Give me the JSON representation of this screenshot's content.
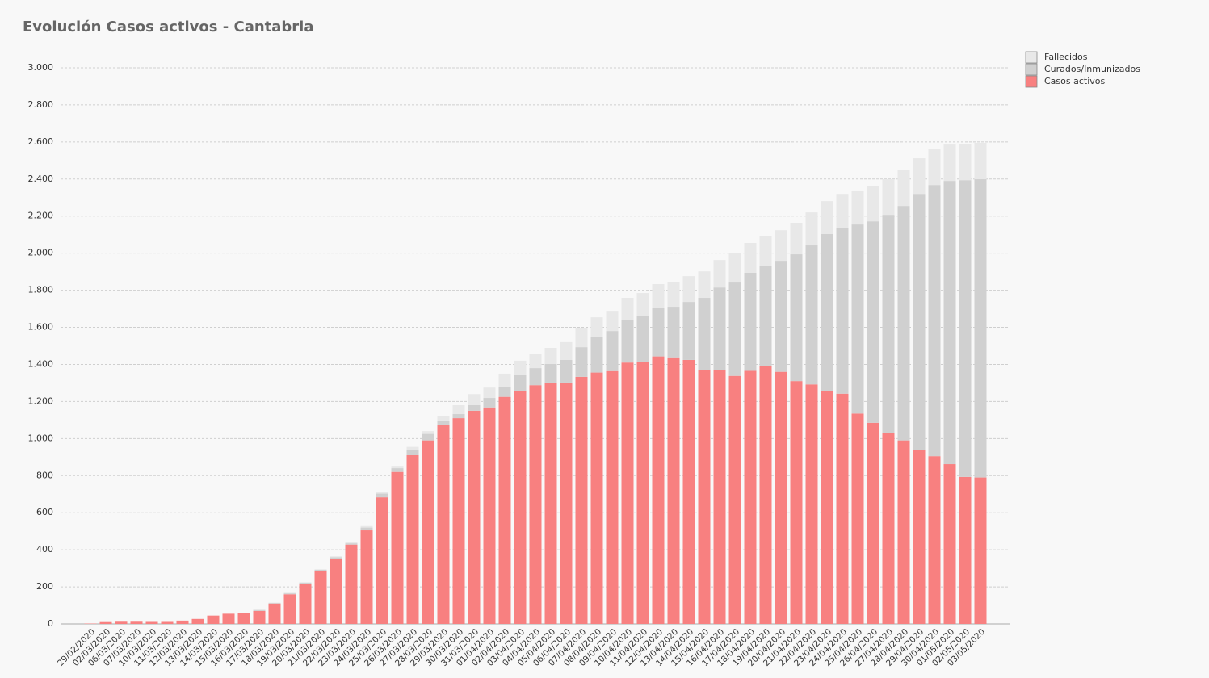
{
  "chart_data": {
    "type": "stacked-bar",
    "title": "Evolución Casos activos - Cantabria",
    "categories": [
      "29/02/2020",
      "02/03/2020",
      "06/03/2020",
      "07/03/2020",
      "10/03/2020",
      "11/03/2020",
      "12/03/2020",
      "13/03/2020",
      "14/03/2020",
      "15/03/2020",
      "16/03/2020",
      "17/03/2020",
      "18/03/2020",
      "19/03/2020",
      "20/03/2020",
      "21/03/2020",
      "22/03/2020",
      "23/03/2020",
      "24/03/2020",
      "25/03/2020",
      "26/03/2020",
      "27/03/2020",
      "28/03/2020",
      "29/03/2020",
      "30/03/2020",
      "31/03/2020",
      "01/04/2020",
      "02/04/2020",
      "03/04/2020",
      "04/04/2020",
      "05/04/2020",
      "06/04/2020",
      "07/04/2020",
      "08/04/2020",
      "09/04/2020",
      "10/04/2020",
      "11/04/2020",
      "12/04/2020",
      "13/04/2020",
      "14/04/2020",
      "15/04/2020",
      "16/04/2020",
      "17/04/2020",
      "18/04/2020",
      "19/04/2020",
      "20/04/2020",
      "21/04/2020",
      "22/04/2020",
      "23/04/2020",
      "24/04/2020",
      "25/04/2020",
      "26/04/2020",
      "27/04/2020",
      "28/04/2020",
      "29/04/2020",
      "30/04/2020",
      "01/05/2020",
      "02/05/2020",
      "03/05/2020"
    ],
    "series": [
      {
        "name": "Casos activos",
        "color": "#f88080",
        "values": [
          2,
          10,
          12,
          12,
          11,
          11,
          18,
          27,
          45,
          55,
          60,
          70,
          110,
          160,
          218,
          287,
          352,
          428,
          505,
          683,
          820,
          910,
          990,
          1072,
          1110,
          1150,
          1168,
          1225,
          1258,
          1288,
          1302,
          1302,
          1333,
          1356,
          1364,
          1410,
          1415,
          1443,
          1438,
          1424,
          1370,
          1370,
          1338,
          1365,
          1390,
          1360,
          1310,
          1292,
          1255,
          1242,
          1135,
          1085,
          1032,
          990,
          940,
          905,
          862,
          793,
          790
        ]
      },
      {
        "name": "Curados/Inmunizados",
        "color": "#d0d0d0",
        "values": [
          0,
          0,
          0,
          0,
          0,
          0,
          0,
          0,
          0,
          0,
          0,
          5,
          3,
          5,
          5,
          5,
          8,
          7,
          15,
          20,
          20,
          30,
          35,
          21,
          22,
          30,
          51,
          55,
          87,
          92,
          100,
          122,
          160,
          194,
          216,
          231,
          248,
          263,
          273,
          313,
          389,
          445,
          508,
          529,
          543,
          599,
          684,
          750,
          848,
          896,
          1020,
          1087,
          1175,
          1265,
          1380,
          1463,
          1528,
          1601,
          1609
        ]
      },
      {
        "name": "Fallecidos",
        "color": "#e8e8e8",
        "values": [
          0,
          0,
          0,
          0,
          0,
          0,
          0,
          0,
          0,
          0,
          0,
          3,
          2,
          3,
          2,
          3,
          5,
          5,
          8,
          7,
          13,
          15,
          15,
          30,
          48,
          60,
          56,
          70,
          75,
          78,
          87,
          96,
          105,
          104,
          109,
          118,
          122,
          127,
          135,
          139,
          143,
          148,
          157,
          161,
          161,
          165,
          170,
          178,
          178,
          182,
          179,
          188,
          192,
          192,
          192,
          192,
          196,
          196,
          196
        ]
      }
    ],
    "ylim": [
      0,
      3000
    ],
    "yticks": [
      0,
      200,
      400,
      600,
      800,
      {
        "value": 1000,
        "label": "1.000"
      },
      {
        "value": 1200,
        "label": "1.200"
      },
      {
        "value": 1400,
        "label": "1.400"
      },
      {
        "value": 1600,
        "label": "1.600"
      },
      {
        "value": 1800,
        "label": "1.800"
      },
      {
        "value": 2000,
        "label": "2.000"
      },
      {
        "value": 2200,
        "label": "2.200"
      },
      {
        "value": 2400,
        "label": "2.400"
      },
      {
        "value": 2600,
        "label": "2.600"
      },
      {
        "value": 2800,
        "label": "2.800"
      },
      {
        "value": 3000,
        "label": "3.000"
      }
    ],
    "grid": true
  }
}
